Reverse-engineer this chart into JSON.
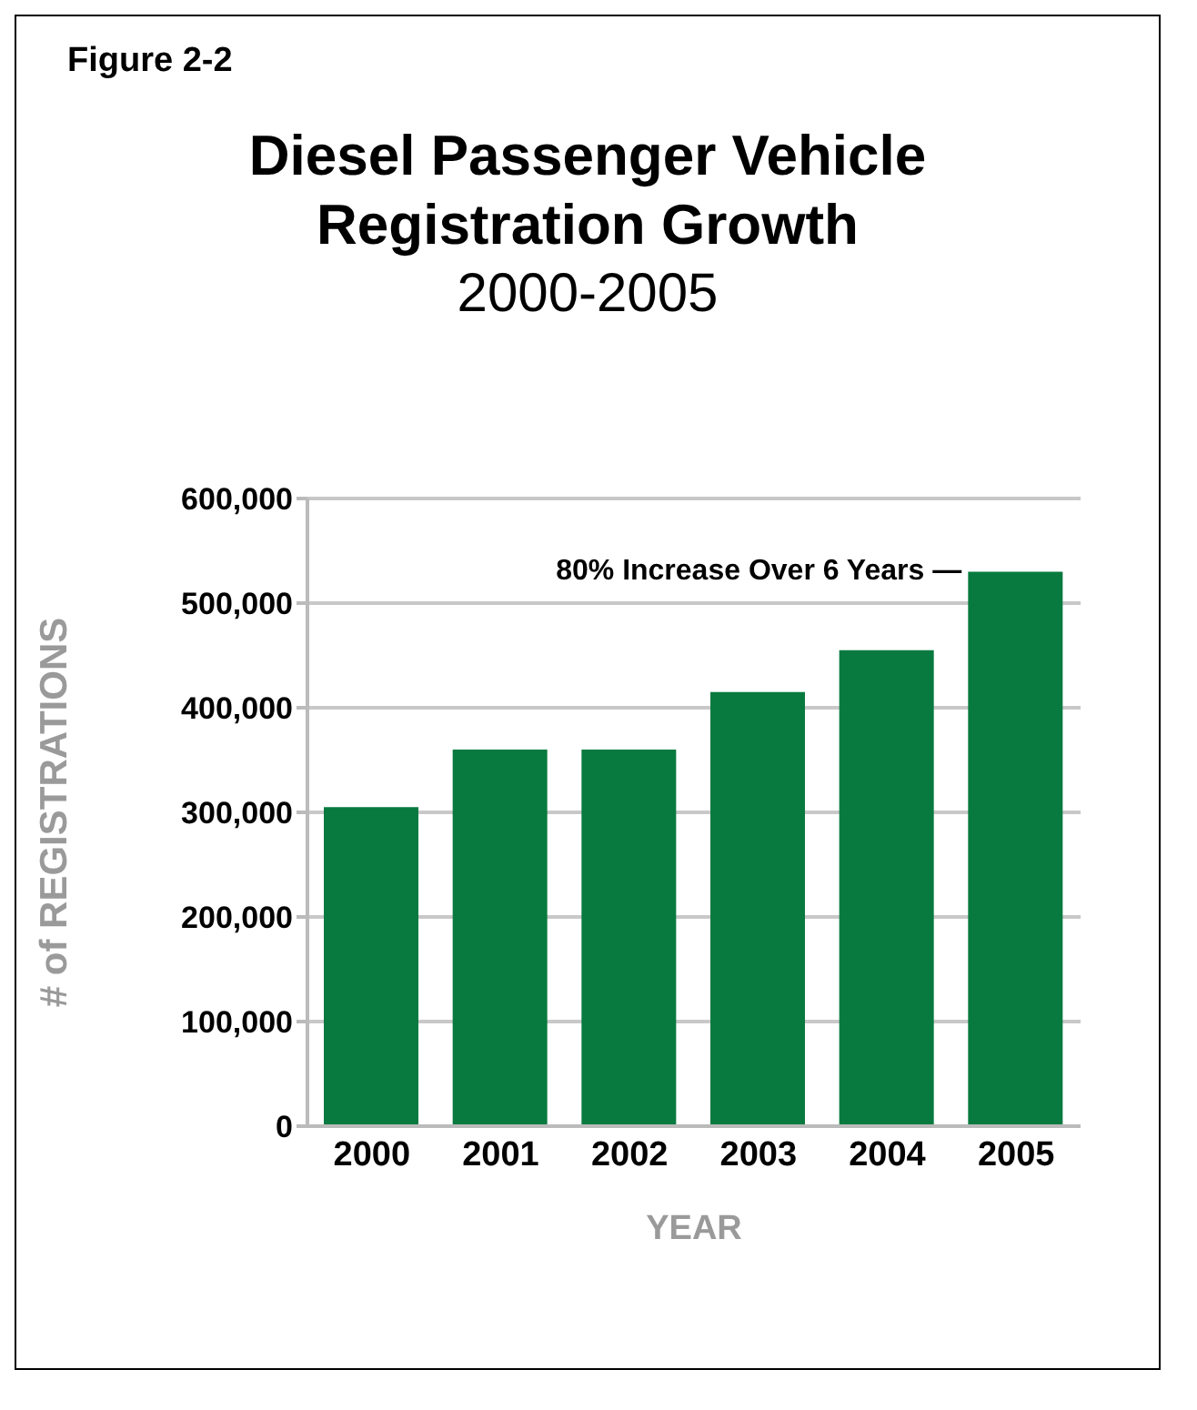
{
  "chart_data": {
    "type": "bar",
    "title": "Diesel Passenger Vehicle Registration Growth",
    "subtitle": "2000-2005",
    "xlabel": "YEAR",
    "ylabel": "# of REGISTRATIONS",
    "categories": [
      "2000",
      "2001",
      "2002",
      "2003",
      "2004",
      "2005"
    ],
    "values": [
      305000,
      360000,
      360000,
      415000,
      455000,
      530000
    ],
    "color": "#087a3f",
    "ylim": [
      0,
      600000
    ],
    "yticks": [
      0,
      {
        "value": 100000,
        "label": "100,000"
      },
      {
        "value": 200000,
        "label": "200,000"
      },
      {
        "value": 300000,
        "label": "300,000"
      },
      {
        "value": 400000,
        "label": "400,000"
      },
      {
        "value": 500000,
        "label": "500,000"
      },
      {
        "value": 600000,
        "label": "600,000"
      }
    ],
    "grid": "y",
    "annotations": [
      "Figure 2-2",
      {
        "text": "80% Increase Over 6 Years —",
        "x": "2005",
        "y": 530000
      }
    ]
  }
}
